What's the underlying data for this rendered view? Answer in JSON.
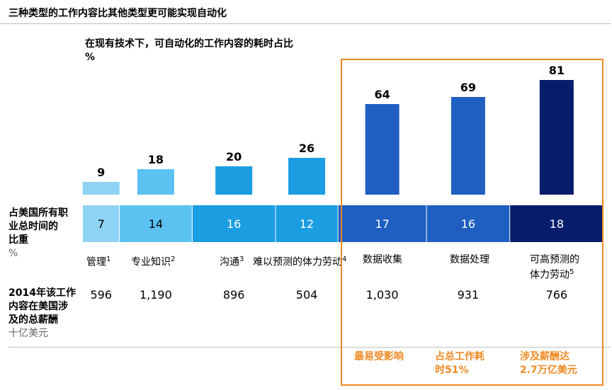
{
  "title": "三种类型的工作内容比其他类型更可能实现自动化",
  "subtitle_line1": "在现有技术下，可自动化的工作内容的耗时占比",
  "subtitle_line2": "%",
  "share_label_line1": "占美国所有职",
  "share_label_line2": "业总时间的",
  "share_label_line3": "比重",
  "share_label_unit": "%",
  "wage_label_line1": "2014年该工作",
  "wage_label_line2": "内容在美国涉",
  "wage_label_line3": "及的总薪酬",
  "wage_label_unit": "十亿美元",
  "callouts": {
    "c1": "最易受影响",
    "c2_line1": "占总工作耗",
    "c2_line2": "时51%",
    "c3_line1": "涉及薪酬达",
    "c3_line2": "2.7万亿美元"
  },
  "colors": {
    "light": "#8fd3f4",
    "sky": "#5bc2f2",
    "mid": "#1b9de2",
    "royal": "#1f5fc1",
    "navy": "#071d6b",
    "highlight": "#f08a24"
  },
  "chart_data": {
    "type": "bar",
    "categories": [
      {
        "name": "管理",
        "sup": "1"
      },
      {
        "name": "专业知识",
        "sup": "2"
      },
      {
        "name": "沟通",
        "sup": "3"
      },
      {
        "name": "难以预测的体力劳动",
        "sup": "4"
      },
      {
        "name": "数据收集",
        "sup": ""
      },
      {
        "name": "数据处理",
        "sup": ""
      },
      {
        "name": "可高预测的",
        "name2": "体力劳动",
        "sup": "5"
      }
    ],
    "automatable_pct": [
      9,
      18,
      20,
      26,
      64,
      69,
      81
    ],
    "time_share_pct": [
      7,
      14,
      16,
      12,
      17,
      16,
      18
    ],
    "wages_billion_usd": [
      "596",
      "1,190",
      "896",
      "504",
      "1,030",
      "931",
      "766"
    ],
    "ylim": [
      0,
      100
    ]
  }
}
